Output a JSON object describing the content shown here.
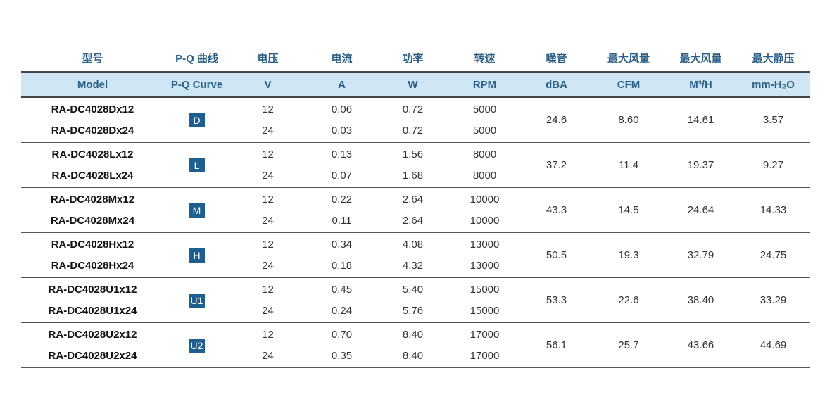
{
  "header_cn": [
    "型号",
    "P-Q 曲线",
    "电压",
    "电流",
    "功率",
    "转速",
    "噪音",
    "最大风量",
    "最大风量",
    "最大静压"
  ],
  "header_en": [
    "Model",
    "P-Q Curve",
    "V",
    "A",
    "W",
    "RPM",
    "dBA",
    "CFM",
    "M³/H",
    "mm-H₂O"
  ],
  "groups": [
    {
      "curve": "D",
      "models": [
        "RA-DC4028Dx12",
        "RA-DC4028Dx24"
      ],
      "voltage": [
        "12",
        "24"
      ],
      "current": [
        "0.06",
        "0.03"
      ],
      "power": [
        "0.72",
        "0.72"
      ],
      "rpm": [
        "5000",
        "5000"
      ],
      "dba": "24.6",
      "cfm": "8.60",
      "m3h": "14.61",
      "mmh2o": "3.57"
    },
    {
      "curve": "L",
      "models": [
        "RA-DC4028Lx12",
        "RA-DC4028Lx24"
      ],
      "voltage": [
        "12",
        "24"
      ],
      "current": [
        "0.13",
        "0.07"
      ],
      "power": [
        "1.56",
        "1.68"
      ],
      "rpm": [
        "8000",
        "8000"
      ],
      "dba": "37.2",
      "cfm": "11.4",
      "m3h": "19.37",
      "mmh2o": "9.27"
    },
    {
      "curve": "M",
      "models": [
        "RA-DC4028Mx12",
        "RA-DC4028Mx24"
      ],
      "voltage": [
        "12",
        "24"
      ],
      "current": [
        "0.22",
        "0.11"
      ],
      "power": [
        "2.64",
        "2.64"
      ],
      "rpm": [
        "10000",
        "10000"
      ],
      "dba": "43.3",
      "cfm": "14.5",
      "m3h": "24.64",
      "mmh2o": "14.33"
    },
    {
      "curve": "H",
      "models": [
        "RA-DC4028Hx12",
        "RA-DC4028Hx24"
      ],
      "voltage": [
        "12",
        "24"
      ],
      "current": [
        "0.34",
        "0.18"
      ],
      "power": [
        "4.08",
        "4.32"
      ],
      "rpm": [
        "13000",
        "13000"
      ],
      "dba": "50.5",
      "cfm": "19.3",
      "m3h": "32.79",
      "mmh2o": "24.75"
    },
    {
      "curve": "U1",
      "models": [
        "RA-DC4028U1x12",
        "RA-DC4028U1x24"
      ],
      "voltage": [
        "12",
        "24"
      ],
      "current": [
        "0.45",
        "0.24"
      ],
      "power": [
        "5.40",
        "5.76"
      ],
      "rpm": [
        "15000",
        "15000"
      ],
      "dba": "53.3",
      "cfm": "22.6",
      "m3h": "38.40",
      "mmh2o": "33.29"
    },
    {
      "curve": "U2",
      "models": [
        "RA-DC4028U2x12",
        "RA-DC4028U2x24"
      ],
      "voltage": [
        "12",
        "24"
      ],
      "current": [
        "0.70",
        "0.35"
      ],
      "power": [
        "8.40",
        "8.40"
      ],
      "rpm": [
        "17000",
        "17000"
      ],
      "dba": "56.1",
      "cfm": "25.7",
      "m3h": "43.66",
      "mmh2o": "44.69"
    }
  ]
}
